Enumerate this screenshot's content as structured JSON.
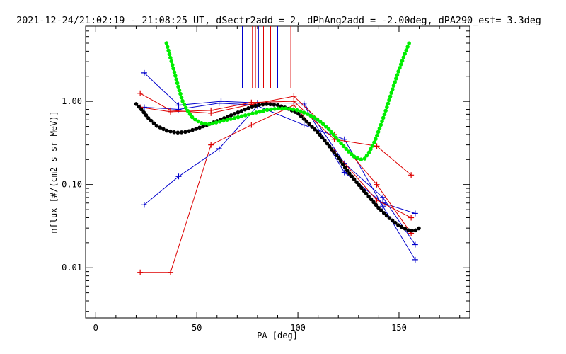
{
  "chart_data": {
    "type": "scatter",
    "title": "2021-12-24/21:02:19 - 21:08:25 UT, dSectr2add = 2, dPhAng2add = -2.00deg, dPA290_est=   3.3deg",
    "xlabel": "PA [deg]",
    "ylabel": "nflux [#/(cm2 s sr MeV)]",
    "xlim": [
      -5,
      185
    ],
    "ylim": [
      0.0025,
      8
    ],
    "yscale": "log",
    "grid": false,
    "x_ticks": [
      0,
      50,
      100,
      150
    ],
    "x_tick_labels": [
      "0",
      "50",
      "100",
      "150"
    ],
    "y_ticks": [
      0.01,
      0.1,
      1
    ],
    "y_tick_labels": [
      "0.01",
      "0.10",
      "1.00"
    ],
    "colors": {
      "blue": "#0000cc",
      "red": "#dd0000",
      "green": "#00ee00",
      "black": "#000000"
    },
    "vertical_markers": [
      {
        "color": "blue",
        "x": [
          72.5,
          80.5,
          90.0
        ]
      },
      {
        "color": "red",
        "x": [
          77.5,
          79.0,
          83.0,
          86.5,
          96.5
        ]
      }
    ],
    "series": [
      {
        "color": "blue",
        "x": [
          24,
          41,
          62,
          80,
          103,
          123,
          142,
          158
        ],
        "y": [
          2.2,
          0.9,
          1.0,
          0.96,
          0.95,
          0.18,
          0.07,
          0.019
        ]
      },
      {
        "color": "blue",
        "x": [
          24,
          41,
          61,
          80,
          103,
          123,
          142,
          158
        ],
        "y": [
          0.85,
          0.8,
          0.95,
          0.9,
          0.9,
          0.14,
          0.06,
          0.045
        ]
      },
      {
        "color": "blue",
        "x": [
          24,
          41,
          61,
          80,
          103,
          123,
          142,
          158
        ],
        "y": [
          0.057,
          0.125,
          0.27,
          0.88,
          0.52,
          0.35,
          0.055,
          0.0125
        ]
      },
      {
        "color": "red",
        "x": [
          22,
          37,
          57,
          77,
          98,
          118,
          139,
          156
        ],
        "y": [
          1.25,
          0.78,
          0.72,
          0.92,
          1.15,
          0.4,
          0.1,
          0.026
        ]
      },
      {
        "color": "red",
        "x": [
          22,
          37,
          57,
          77,
          98,
          118,
          139,
          156
        ],
        "y": [
          0.85,
          0.75,
          0.78,
          0.97,
          1.0,
          0.35,
          0.29,
          0.13
        ]
      },
      {
        "color": "red",
        "x": [
          22,
          37,
          57,
          77,
          98,
          118,
          139,
          156
        ],
        "y": [
          0.0088,
          0.0088,
          0.3,
          0.52,
          0.9,
          0.25,
          0.065,
          0.04
        ]
      }
    ],
    "curves": [
      {
        "color": "black",
        "x": [
          20,
          23,
          26,
          30,
          35,
          40,
          45,
          50,
          55,
          60,
          65,
          70,
          75,
          80,
          85,
          90,
          95,
          100,
          105,
          110,
          115,
          120,
          125,
          130,
          135,
          140,
          145,
          150,
          155,
          158,
          160
        ],
        "y": [
          0.93,
          0.78,
          0.63,
          0.51,
          0.445,
          0.42,
          0.43,
          0.47,
          0.52,
          0.58,
          0.65,
          0.73,
          0.82,
          0.9,
          0.93,
          0.9,
          0.82,
          0.72,
          0.55,
          0.42,
          0.3,
          0.21,
          0.14,
          0.1,
          0.072,
          0.052,
          0.04,
          0.032,
          0.028,
          0.028,
          0.03
        ]
      },
      {
        "color": "green",
        "x": [
          35,
          37,
          39,
          41,
          43,
          45,
          48,
          52,
          56,
          60,
          65,
          70,
          75,
          80,
          85,
          90,
          95,
          100,
          105,
          110,
          115,
          120,
          125,
          128,
          131,
          133,
          135,
          138,
          141,
          144,
          147,
          150,
          153,
          155
        ],
        "y": [
          5.0,
          3.3,
          2.2,
          1.45,
          1.0,
          0.8,
          0.63,
          0.55,
          0.53,
          0.56,
          0.6,
          0.64,
          0.69,
          0.74,
          0.79,
          0.82,
          0.82,
          0.78,
          0.7,
          0.6,
          0.47,
          0.34,
          0.25,
          0.215,
          0.2,
          0.205,
          0.24,
          0.33,
          0.52,
          0.85,
          1.45,
          2.4,
          3.8,
          5.0
        ]
      }
    ]
  }
}
